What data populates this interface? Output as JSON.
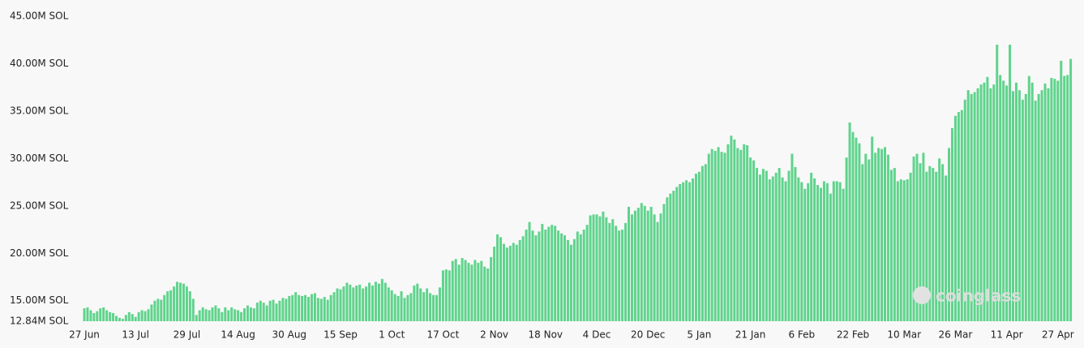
{
  "chart_data": {
    "type": "bar",
    "watermark": "coinglass",
    "color": "#5fd38c",
    "ylim": [
      12.84,
      45
    ],
    "grid": false,
    "yticks": [
      {
        "value": 12.84,
        "label": "12.84M SOL"
      },
      {
        "value": 15,
        "label": "15.00M SOL"
      },
      {
        "value": 20,
        "label": "20.00M SOL"
      },
      {
        "value": 25,
        "label": "25.00M SOL"
      },
      {
        "value": 30,
        "label": "30.00M SOL"
      },
      {
        "value": 35,
        "label": "35.00M SOL"
      },
      {
        "value": 40,
        "label": "40.00M SOL"
      },
      {
        "value": 45,
        "label": "45.00M SOL"
      }
    ],
    "categories": [
      "27 Jun",
      null,
      null,
      null,
      null,
      null,
      null,
      null,
      null,
      null,
      null,
      null,
      null,
      null,
      null,
      null,
      "13 Jul",
      null,
      null,
      null,
      null,
      null,
      null,
      null,
      null,
      null,
      null,
      null,
      null,
      null,
      null,
      null,
      "29 Jul",
      null,
      null,
      null,
      null,
      null,
      null,
      null,
      null,
      null,
      null,
      null,
      null,
      null,
      null,
      null,
      "14 Aug",
      null,
      null,
      null,
      null,
      null,
      null,
      null,
      null,
      null,
      null,
      null,
      null,
      null,
      null,
      null,
      "30 Aug",
      null,
      null,
      null,
      null,
      null,
      null,
      null,
      null,
      null,
      null,
      null,
      null,
      null,
      null,
      null,
      "15 Sep",
      null,
      null,
      null,
      null,
      null,
      null,
      null,
      null,
      null,
      null,
      null,
      null,
      null,
      null,
      null,
      "1 Oct",
      null,
      null,
      null,
      null,
      null,
      null,
      null,
      null,
      null,
      null,
      null,
      null,
      null,
      null,
      null,
      "17 Oct",
      null,
      null,
      null,
      null,
      null,
      null,
      null,
      null,
      null,
      null,
      null,
      null,
      null,
      null,
      null,
      "2 Nov",
      null,
      null,
      null,
      null,
      null,
      null,
      null,
      null,
      null,
      null,
      null,
      null,
      null,
      null,
      null,
      "18 Nov",
      null,
      null,
      null,
      null,
      null,
      null,
      null,
      null,
      null,
      null,
      null,
      null,
      null,
      null,
      null,
      "4 Dec",
      null,
      null,
      null,
      null,
      null,
      null,
      null,
      null,
      null,
      null,
      null,
      null,
      null,
      null,
      null,
      "20 Dec",
      null,
      null,
      null,
      null,
      null,
      null,
      null,
      null,
      null,
      null,
      null,
      null,
      null,
      null,
      null,
      "5 Jan",
      null,
      null,
      null,
      null,
      null,
      null,
      null,
      null,
      null,
      null,
      null,
      null,
      null,
      null,
      null,
      "21 Jan",
      null,
      null,
      null,
      null,
      null,
      null,
      null,
      null,
      null,
      null,
      null,
      null,
      null,
      null,
      null,
      "6 Feb",
      null,
      null,
      null,
      null,
      null,
      null,
      null,
      null,
      null,
      null,
      null,
      null,
      null,
      null,
      null,
      "22 Feb",
      null,
      null,
      null,
      null,
      null,
      null,
      null,
      null,
      null,
      null,
      null,
      null,
      null,
      null,
      null,
      "10 Mar",
      null,
      null,
      null,
      null,
      null,
      null,
      null,
      null,
      null,
      null,
      null,
      null,
      null,
      null,
      null,
      "26 Mar",
      null,
      null,
      null,
      null,
      null,
      null,
      null,
      null,
      null,
      null,
      null,
      null,
      null,
      null,
      null,
      "11 Apr",
      null,
      null,
      null,
      null,
      null,
      null,
      null,
      null,
      null,
      null,
      null,
      null,
      null,
      null,
      null,
      "27 Apr",
      null,
      null,
      null,
      null
    ],
    "values": [
      14.2,
      14.3,
      14.0,
      13.7,
      13.9,
      14.2,
      14.3,
      14.0,
      13.8,
      13.7,
      13.4,
      13.2,
      13.1,
      13.5,
      13.8,
      13.6,
      13.3,
      13.8,
      14.0,
      13.9,
      14.1,
      14.6,
      15.0,
      15.2,
      15.1,
      15.6,
      16.0,
      16.1,
      16.5,
      17.0,
      16.9,
      16.8,
      16.5,
      16.0,
      15.2,
      13.5,
      14.0,
      14.3,
      14.1,
      14.0,
      14.3,
      14.5,
      14.2,
      13.8,
      14.3,
      14.0,
      14.3,
      14.1,
      14.0,
      13.8,
      14.2,
      14.5,
      14.3,
      14.2,
      14.8,
      15.0,
      14.8,
      14.5,
      15.0,
      15.1,
      14.7,
      15.0,
      15.3,
      15.2,
      15.5,
      15.6,
      15.9,
      15.6,
      15.5,
      15.6,
      15.4,
      15.7,
      15.8,
      15.3,
      15.2,
      15.4,
      15.1,
      15.6,
      15.9,
      16.3,
      16.2,
      16.5,
      16.9,
      16.7,
      16.4,
      16.6,
      16.7,
      16.3,
      16.5,
      16.9,
      16.6,
      17.0,
      16.8,
      17.3,
      16.9,
      16.4,
      16.1,
      15.7,
      15.5,
      16.0,
      15.3,
      15.6,
      15.8,
      16.6,
      16.8,
      16.3,
      15.9,
      16.3,
      15.8,
      15.6,
      15.6,
      16.4,
      18.2,
      18.3,
      18.2,
      19.2,
      19.4,
      18.8,
      19.5,
      19.3,
      19.0,
      18.8,
      19.3,
      19.0,
      19.2,
      18.6,
      18.4,
      19.6,
      20.7,
      22.0,
      21.7,
      21.0,
      20.6,
      20.8,
      21.1,
      20.9,
      21.4,
      21.8,
      22.5,
      23.3,
      22.4,
      21.9,
      22.3,
      23.1,
      22.5,
      22.8,
      23.0,
      22.9,
      22.4,
      22.1,
      21.9,
      21.4,
      20.9,
      21.5,
      22.3,
      22.0,
      22.5,
      23.0,
      24.0,
      24.1,
      24.1,
      23.9,
      24.4,
      23.8,
      23.2,
      23.6,
      22.9,
      22.4,
      22.5,
      23.2,
      24.9,
      24.1,
      24.5,
      24.8,
      25.3,
      25.0,
      24.5,
      24.9,
      24.1,
      23.3,
      24.2,
      25.2,
      25.9,
      26.3,
      26.6,
      27.0,
      27.3,
      27.5,
      27.7,
      27.5,
      27.9,
      28.4,
      28.6,
      29.2,
      29.4,
      30.5,
      31.0,
      30.8,
      31.2,
      30.7,
      30.6,
      31.5,
      32.4,
      32.0,
      31.1,
      30.9,
      31.5,
      31.4,
      30.1,
      29.8,
      29.0,
      28.3,
      28.9,
      28.7,
      27.8,
      28.1,
      28.5,
      29.0,
      28.0,
      27.6,
      28.7,
      30.5,
      29.1,
      28.0,
      27.5,
      26.8,
      27.4,
      28.5,
      27.9,
      27.2,
      26.9,
      27.6,
      27.4,
      26.3,
      27.6,
      27.6,
      27.5,
      26.8,
      30.1,
      33.8,
      32.8,
      32.2,
      31.6,
      29.4,
      30.5,
      29.9,
      32.3,
      30.6,
      31.1,
      31.0,
      31.2,
      30.4,
      28.8,
      29.0,
      27.6,
      27.8,
      27.7,
      27.8,
      28.5,
      30.2,
      30.5,
      29.5,
      30.6,
      28.6,
      29.2,
      29.0,
      28.6,
      30.0,
      29.4,
      28.2,
      31.1,
      33.2,
      34.5,
      34.9,
      35.1,
      36.2,
      37.2,
      36.8,
      37.0,
      37.4,
      37.8,
      38.0,
      38.6,
      37.4,
      37.8,
      42.0,
      38.8,
      38.2,
      37.7,
      42.0,
      37.1,
      38.0,
      37.2,
      36.2,
      36.8,
      38.7,
      38.0,
      36.1,
      36.8,
      37.2,
      37.9,
      37.4,
      38.5,
      38.4,
      38.2,
      40.3,
      38.7,
      38.8,
      40.5
    ]
  }
}
